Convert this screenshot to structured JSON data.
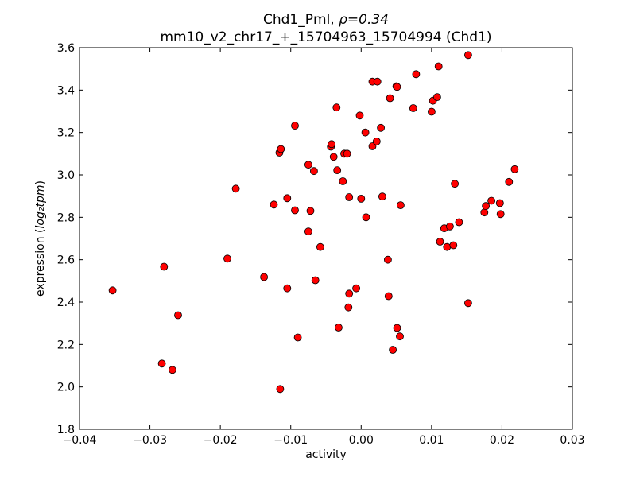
{
  "chart_data": {
    "type": "scatter",
    "title_name": "Chd1_Pml, ",
    "title_rho": "ρ=0.34",
    "subtitle": "mm10_v2_chr17_+_15704963_15704994 (Chd1)",
    "xlabel": "activity",
    "ylabel_text": "expression (",
    "ylabel_math": "log₂tpm",
    "ylabel_close": ")",
    "xlim": [
      -0.04,
      0.03
    ],
    "ylim": [
      1.8,
      3.6
    ],
    "xticks": [
      -0.04,
      -0.03,
      -0.02,
      -0.01,
      0.0,
      0.01,
      0.02,
      0.03
    ],
    "xtick_labels": [
      "−0.04",
      "−0.03",
      "−0.02",
      "−0.01",
      "0.00",
      "0.01",
      "0.02",
      "0.03"
    ],
    "yticks": [
      1.8,
      2.0,
      2.2,
      2.4,
      2.6,
      2.8,
      3.0,
      3.2,
      3.4,
      3.6
    ],
    "ytick_labels": [
      "1.8",
      "2.0",
      "2.2",
      "2.4",
      "2.6",
      "2.8",
      "3.0",
      "3.2",
      "3.4",
      "3.6"
    ],
    "marker_color": "#ff0000",
    "marker_edge": "#000000",
    "points": [
      {
        "x": -0.0353,
        "y": 2.455
      },
      {
        "x": -0.028,
        "y": 2.567
      },
      {
        "x": -0.0283,
        "y": 2.11
      },
      {
        "x": -0.0268,
        "y": 2.08
      },
      {
        "x": -0.026,
        "y": 2.338
      },
      {
        "x": -0.019,
        "y": 2.605
      },
      {
        "x": -0.0178,
        "y": 2.935
      },
      {
        "x": -0.0138,
        "y": 2.518
      },
      {
        "x": -0.0124,
        "y": 2.86
      },
      {
        "x": -0.0116,
        "y": 3.105
      },
      {
        "x": -0.0114,
        "y": 3.122
      },
      {
        "x": -0.0115,
        "y": 1.99
      },
      {
        "x": -0.0105,
        "y": 2.89
      },
      {
        "x": -0.0105,
        "y": 2.465
      },
      {
        "x": -0.0094,
        "y": 3.232
      },
      {
        "x": -0.0094,
        "y": 2.833
      },
      {
        "x": -0.009,
        "y": 2.233
      },
      {
        "x": -0.0075,
        "y": 3.048
      },
      {
        "x": -0.0075,
        "y": 2.733
      },
      {
        "x": -0.0072,
        "y": 2.83
      },
      {
        "x": -0.0067,
        "y": 3.018
      },
      {
        "x": -0.0065,
        "y": 2.503
      },
      {
        "x": -0.0058,
        "y": 2.66
      },
      {
        "x": -0.0043,
        "y": 3.133
      },
      {
        "x": -0.0042,
        "y": 3.145
      },
      {
        "x": -0.0039,
        "y": 3.085
      },
      {
        "x": -0.0035,
        "y": 3.318
      },
      {
        "x": -0.0034,
        "y": 3.022
      },
      {
        "x": -0.0032,
        "y": 2.28
      },
      {
        "x": -0.0026,
        "y": 2.97
      },
      {
        "x": -0.0024,
        "y": 3.1
      },
      {
        "x": -0.002,
        "y": 3.1
      },
      {
        "x": -0.0017,
        "y": 2.895
      },
      {
        "x": -0.0017,
        "y": 2.44
      },
      {
        "x": -0.0018,
        "y": 2.375
      },
      {
        "x": -0.0007,
        "y": 2.465
      },
      {
        "x": -0.0002,
        "y": 3.28
      },
      {
        "x": 0.0,
        "y": 2.888
      },
      {
        "x": 0.0006,
        "y": 3.2
      },
      {
        "x": 0.0007,
        "y": 2.8
      },
      {
        "x": 0.0016,
        "y": 3.44
      },
      {
        "x": 0.0016,
        "y": 3.135
      },
      {
        "x": 0.0022,
        "y": 3.158
      },
      {
        "x": 0.0023,
        "y": 3.44
      },
      {
        "x": 0.0028,
        "y": 3.222
      },
      {
        "x": 0.003,
        "y": 2.898
      },
      {
        "x": 0.0038,
        "y": 2.6
      },
      {
        "x": 0.0039,
        "y": 2.428
      },
      {
        "x": 0.0041,
        "y": 3.362
      },
      {
        "x": 0.0045,
        "y": 2.175
      },
      {
        "x": 0.005,
        "y": 3.418
      },
      {
        "x": 0.0051,
        "y": 3.415
      },
      {
        "x": 0.0051,
        "y": 2.278
      },
      {
        "x": 0.0055,
        "y": 2.238
      },
      {
        "x": 0.0056,
        "y": 2.857
      },
      {
        "x": 0.0074,
        "y": 3.315
      },
      {
        "x": 0.0078,
        "y": 3.475
      },
      {
        "x": 0.01,
        "y": 3.298
      },
      {
        "x": 0.0102,
        "y": 3.35
      },
      {
        "x": 0.0108,
        "y": 3.367
      },
      {
        "x": 0.011,
        "y": 3.512
      },
      {
        "x": 0.0112,
        "y": 2.685
      },
      {
        "x": 0.0118,
        "y": 2.748
      },
      {
        "x": 0.0122,
        "y": 2.66
      },
      {
        "x": 0.0126,
        "y": 2.757
      },
      {
        "x": 0.0131,
        "y": 2.668
      },
      {
        "x": 0.0133,
        "y": 2.958
      },
      {
        "x": 0.0139,
        "y": 2.777
      },
      {
        "x": 0.0152,
        "y": 3.565
      },
      {
        "x": 0.0152,
        "y": 2.395
      },
      {
        "x": 0.0175,
        "y": 2.823
      },
      {
        "x": 0.0177,
        "y": 2.853
      },
      {
        "x": 0.0185,
        "y": 2.878
      },
      {
        "x": 0.0197,
        "y": 2.867
      },
      {
        "x": 0.0198,
        "y": 2.815
      },
      {
        "x": 0.021,
        "y": 2.967
      },
      {
        "x": 0.0218,
        "y": 3.027
      }
    ]
  }
}
